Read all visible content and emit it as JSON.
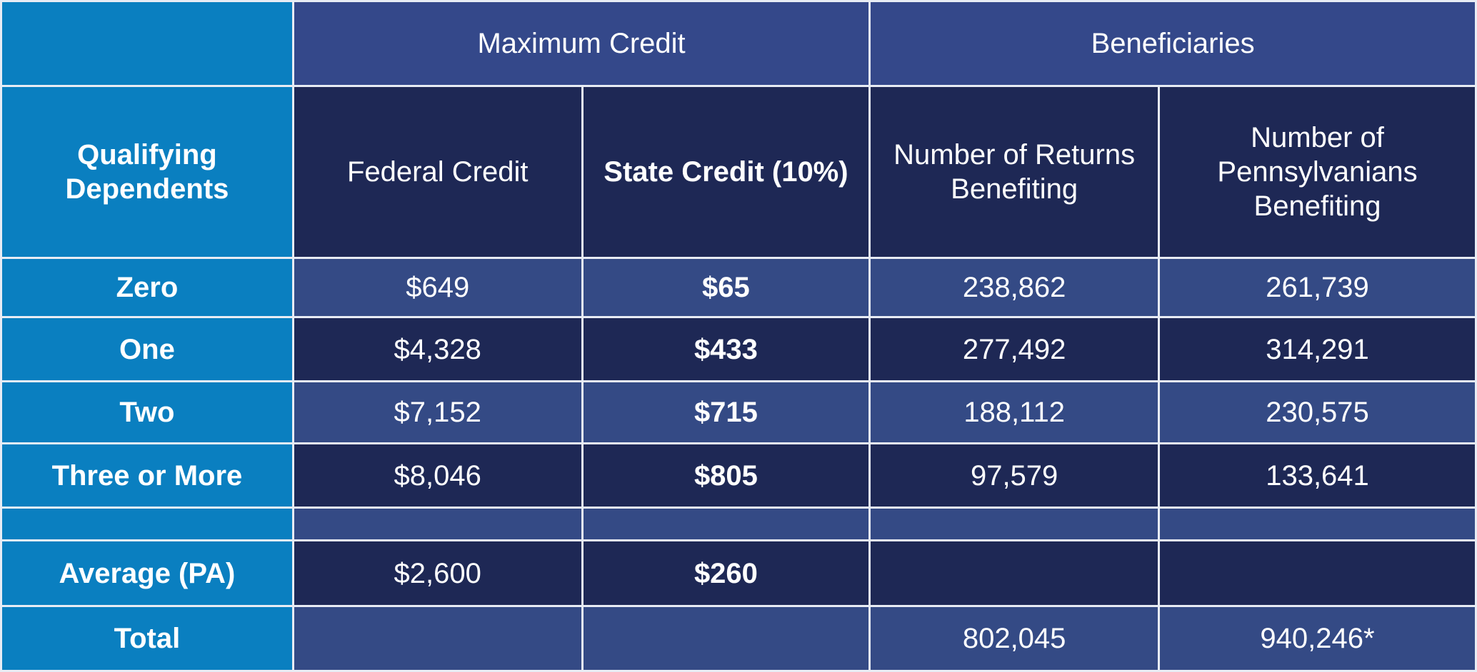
{
  "header": {
    "group_maximum_credit": "Maximum Credit",
    "group_beneficiaries": "Beneficiaries",
    "qualifying_dependents": "Qualifying Dependents",
    "federal_credit": "Federal Credit",
    "state_credit": "State Credit (10%)",
    "number_of_returns": "Number of Returns Benefiting",
    "number_of_pennsylvanians": "Number of Pennsylvanians Benefiting"
  },
  "rows": [
    {
      "label": "Zero",
      "federal": "$649",
      "state": "$65",
      "returns": "238,862",
      "people": "261,739"
    },
    {
      "label": "One",
      "federal": "$4,328",
      "state": "$433",
      "returns": "277,492",
      "people": "314,291"
    },
    {
      "label": "Two",
      "federal": "$7,152",
      "state": "$715",
      "returns": "188,112",
      "people": "230,575"
    },
    {
      "label": "Three or More",
      "federal": "$8,046",
      "state": "$805",
      "returns": "97,579",
      "people": "133,641"
    }
  ],
  "average": {
    "label": "Average (PA)",
    "federal": "$2,600",
    "state": "$260"
  },
  "total": {
    "label": "Total",
    "returns": "802,045",
    "people": "940,246*"
  }
}
